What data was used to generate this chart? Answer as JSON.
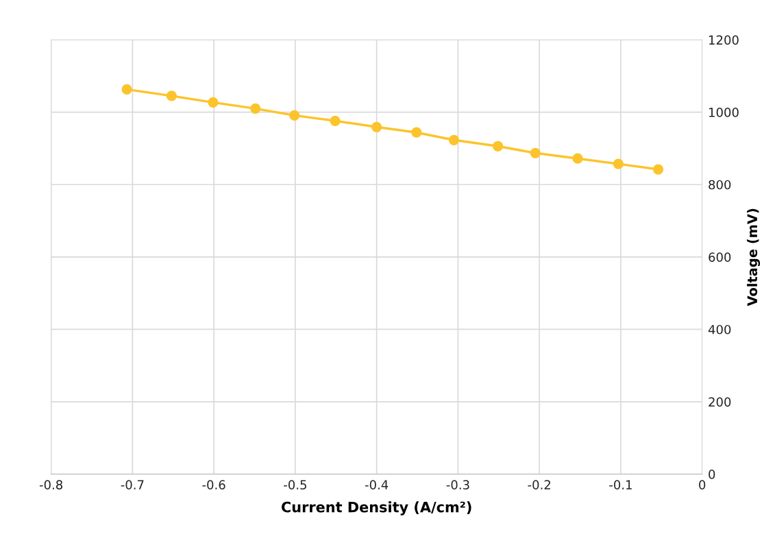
{
  "chart_data": {
    "type": "line",
    "xlabel": "Current Density (A/cm²)",
    "ylabel": "Voltage (mV)",
    "x": [
      -0.707,
      -0.652,
      -0.601,
      -0.549,
      -0.501,
      -0.451,
      -0.4,
      -0.351,
      -0.305,
      -0.251,
      -0.205,
      -0.153,
      -0.103,
      -0.054
    ],
    "series": [
      {
        "color": "#fcc42c",
        "values": [
          1063,
          1045,
          1027,
          1010,
          991,
          976,
          959,
          944,
          923,
          906,
          887,
          872,
          857,
          842
        ]
      }
    ],
    "xlim": [
      -0.8,
      0
    ],
    "xticks": [
      -0.8,
      -0.7,
      -0.6,
      -0.5,
      -0.4,
      -0.3,
      -0.2,
      -0.1,
      0
    ],
    "ylim": [
      0,
      1200
    ],
    "yticks": [
      0,
      200,
      400,
      600,
      800,
      1000,
      1200
    ],
    "grid": true,
    "marker": "circle",
    "line_style": "solid"
  }
}
